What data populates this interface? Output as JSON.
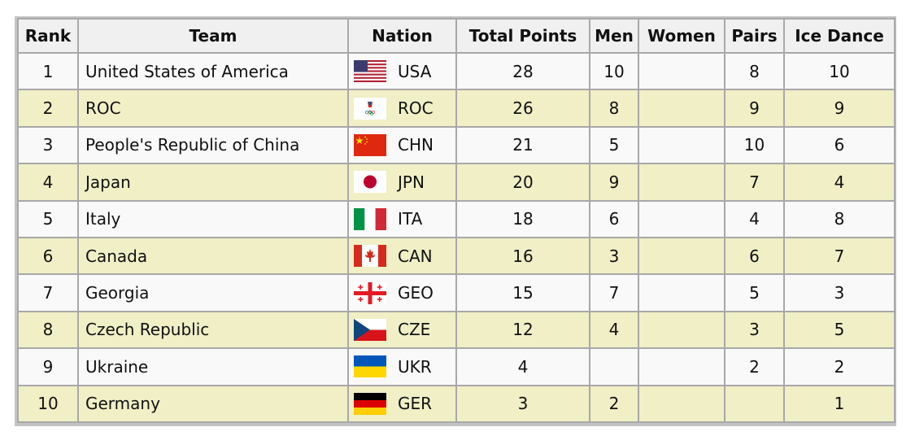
{
  "columns": {
    "rank": "Rank",
    "team": "Team",
    "nation": "Nation",
    "total": "Total Points",
    "men": "Men",
    "women": "Women",
    "pairs": "Pairs",
    "ice_dance": "Ice Dance"
  },
  "rows": [
    {
      "rank": "1",
      "team": "United States of America",
      "code": "USA",
      "flag": "usa-flag-icon",
      "total": "28",
      "men": "10",
      "women": "",
      "pairs": "8",
      "ice_dance": "10"
    },
    {
      "rank": "2",
      "team": "ROC",
      "code": "ROC",
      "flag": "roc-flag-icon",
      "total": "26",
      "men": "8",
      "women": "",
      "pairs": "9",
      "ice_dance": "9"
    },
    {
      "rank": "3",
      "team": "People's Republic of China",
      "code": "CHN",
      "flag": "chn-flag-icon",
      "total": "21",
      "men": "5",
      "women": "",
      "pairs": "10",
      "ice_dance": "6"
    },
    {
      "rank": "4",
      "team": "Japan",
      "code": "JPN",
      "flag": "jpn-flag-icon",
      "total": "20",
      "men": "9",
      "women": "",
      "pairs": "7",
      "ice_dance": "4"
    },
    {
      "rank": "5",
      "team": "Italy",
      "code": "ITA",
      "flag": "ita-flag-icon",
      "total": "18",
      "men": "6",
      "women": "",
      "pairs": "4",
      "ice_dance": "8"
    },
    {
      "rank": "6",
      "team": "Canada",
      "code": "CAN",
      "flag": "can-flag-icon",
      "total": "16",
      "men": "3",
      "women": "",
      "pairs": "6",
      "ice_dance": "7"
    },
    {
      "rank": "7",
      "team": "Georgia",
      "code": "GEO",
      "flag": "geo-flag-icon",
      "total": "15",
      "men": "7",
      "women": "",
      "pairs": "5",
      "ice_dance": "3"
    },
    {
      "rank": "8",
      "team": "Czech Republic",
      "code": "CZE",
      "flag": "cze-flag-icon",
      "total": "12",
      "men": "4",
      "women": "",
      "pairs": "3",
      "ice_dance": "5"
    },
    {
      "rank": "9",
      "team": "Ukraine",
      "code": "UKR",
      "flag": "ukr-flag-icon",
      "total": "4",
      "men": "",
      "women": "",
      "pairs": "2",
      "ice_dance": "2"
    },
    {
      "rank": "10",
      "team": "Germany",
      "code": "GER",
      "flag": "ger-flag-icon",
      "total": "3",
      "men": "2",
      "women": "",
      "pairs": "",
      "ice_dance": "1"
    }
  ],
  "colors": {
    "header_bg": "#f0f0f0",
    "row_light": "#f9f9f9",
    "row_highlight": "#f0efc6",
    "border": "#a8a8a8"
  }
}
